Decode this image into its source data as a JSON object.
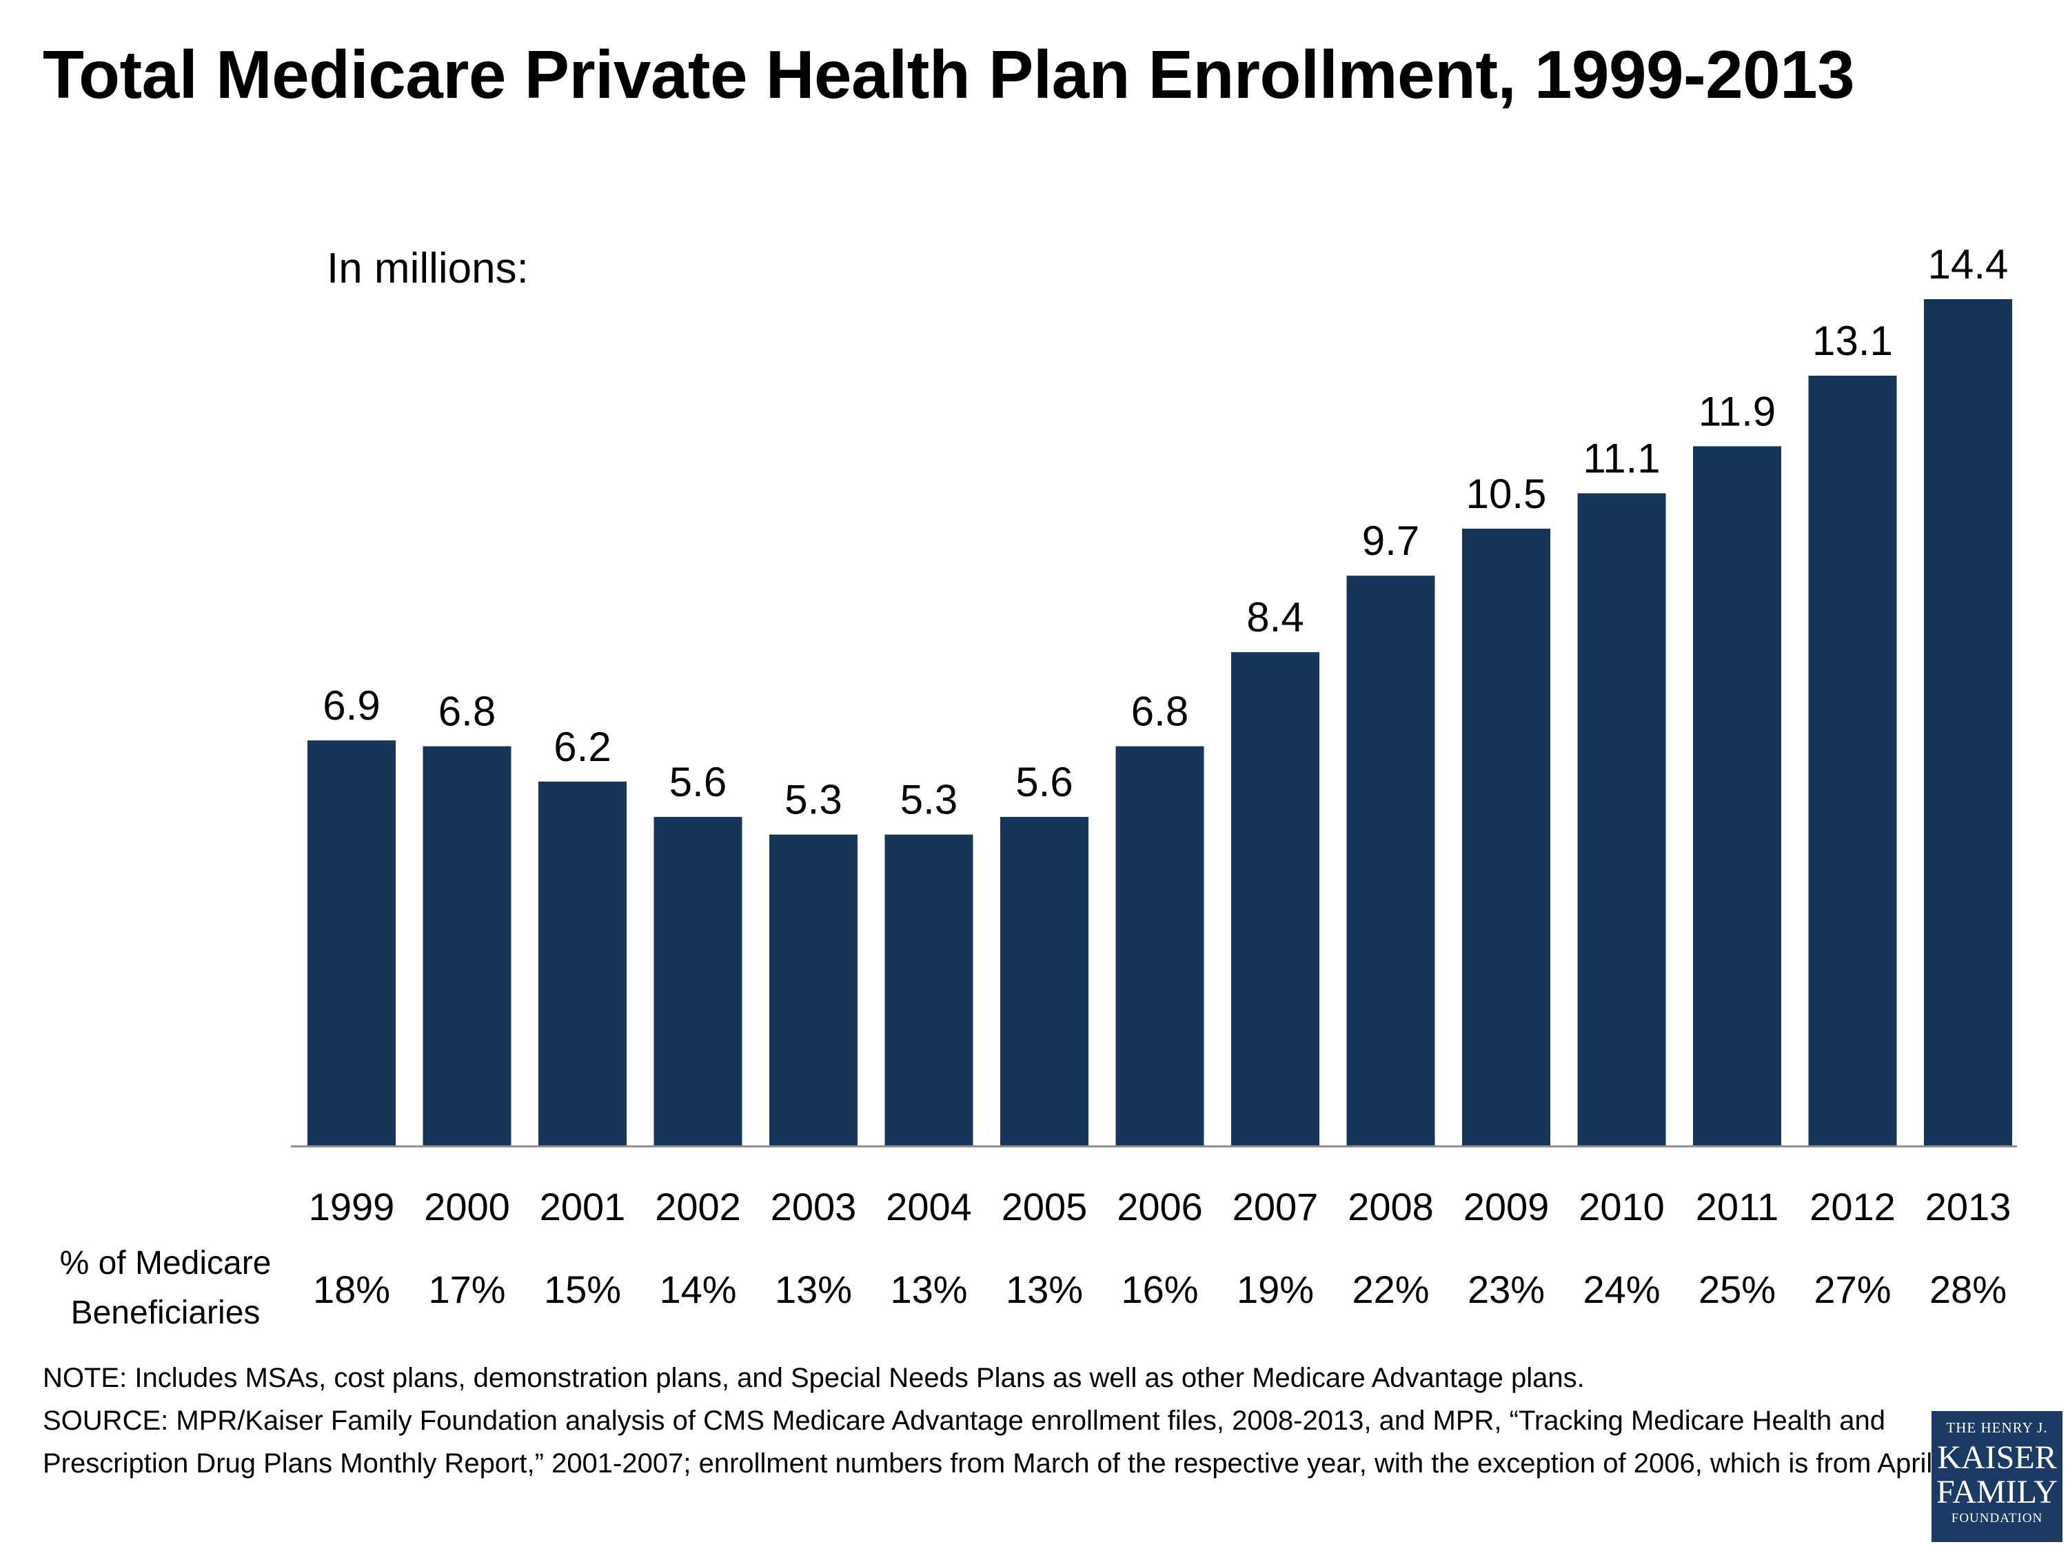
{
  "title": "Total Medicare Private Health Plan Enrollment, 1999-2013",
  "units_label": "In millions:",
  "row_label_line1": "% of Medicare",
  "row_label_line2": "Beneficiaries",
  "note": "NOTE:  Includes MSAs, cost plans, demonstration plans, and Special Needs Plans as well as other Medicare Advantage plans.",
  "source": "SOURCE:  MPR/Kaiser Family Foundation analysis of CMS Medicare Advantage enrollment files, 2008-2013, and MPR, “Tracking Medicare Health and Prescription Drug Plans Monthly Report,” 2001-2007; enrollment numbers from March of the respective year, with the exception of 2006, which is from April.",
  "logo": {
    "line1": "THE HENRY J.",
    "line2": "KAISER",
    "line3": "FAMILY",
    "line4": "FOUNDATION"
  },
  "colors": {
    "bar": "#173459",
    "axis": "#8c8c8c",
    "logo_bg": "#1b3a64"
  },
  "chart_data": {
    "type": "bar",
    "title": "Total Medicare Private Health Plan Enrollment, 1999-2013",
    "ylabel": "In millions:",
    "categories": [
      "1999",
      "2000",
      "2001",
      "2002",
      "2003",
      "2004",
      "2005",
      "2006",
      "2007",
      "2008",
      "2009",
      "2010",
      "2011",
      "2012",
      "2013"
    ],
    "values": [
      6.9,
      6.8,
      6.2,
      5.6,
      5.3,
      5.3,
      5.6,
      6.8,
      8.4,
      9.7,
      10.5,
      11.1,
      11.9,
      13.1,
      14.4
    ],
    "value_labels": [
      "6.9",
      "6.8",
      "6.2",
      "5.6",
      "5.3",
      "5.3",
      "5.6",
      "6.8",
      "8.4",
      "9.7",
      "10.5",
      "11.1",
      "11.9",
      "13.1",
      "14.4"
    ],
    "percent_of_beneficiaries": [
      "18%",
      "17%",
      "15%",
      "14%",
      "13%",
      "13%",
      "13%",
      "16%",
      "19%",
      "22%",
      "23%",
      "24%",
      "25%",
      "27%",
      "28%"
    ],
    "ylim": [
      0,
      14.4
    ],
    "grid": false,
    "legend": "none"
  }
}
